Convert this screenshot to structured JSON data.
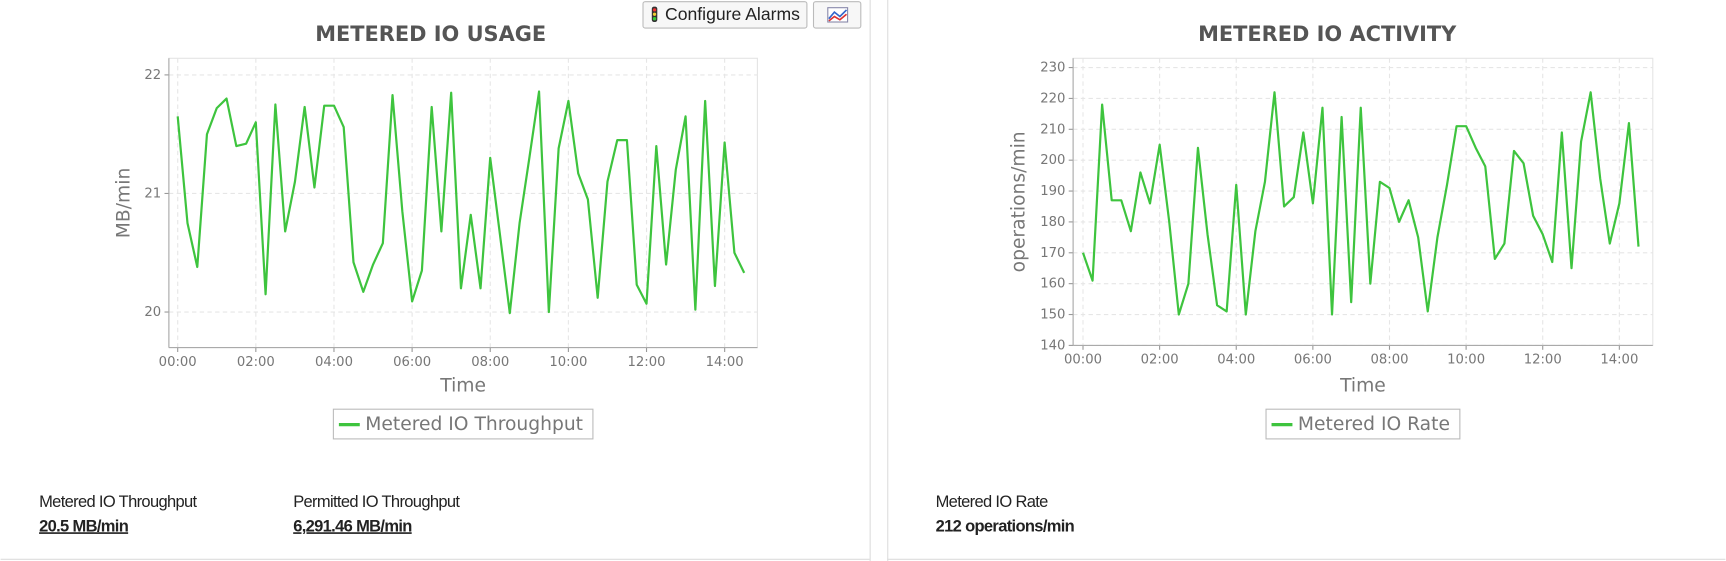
{
  "buttons": {
    "configure_alarms": "Configure Alarms"
  },
  "chart_data": [
    {
      "type": "line",
      "title": "METERED IO USAGE",
      "xlabel": "Time",
      "ylabel": "MB/min",
      "x": [
        "00:00",
        "00:15",
        "00:30",
        "00:45",
        "01:00",
        "01:15",
        "01:30",
        "01:45",
        "02:00",
        "02:15",
        "02:30",
        "02:45",
        "03:00",
        "03:15",
        "03:30",
        "03:45",
        "04:00",
        "04:15",
        "04:30",
        "04:45",
        "05:00",
        "05:15",
        "05:30",
        "05:45",
        "06:00",
        "06:15",
        "06:30",
        "06:45",
        "07:00",
        "07:15",
        "07:30",
        "07:45",
        "08:00",
        "08:15",
        "08:30",
        "08:45",
        "09:00",
        "09:15",
        "09:30",
        "09:45",
        "10:00",
        "10:15",
        "10:30",
        "10:45",
        "11:00",
        "11:15",
        "11:30",
        "11:45",
        "12:00",
        "12:15",
        "12:30",
        "12:45",
        "13:00",
        "13:15",
        "13:30",
        "13:45",
        "14:00",
        "14:15",
        "14:30"
      ],
      "xlim": [
        "00:00",
        "14:30"
      ],
      "xticks": [
        "00:00",
        "02:00",
        "04:00",
        "06:00",
        "08:00",
        "10:00",
        "12:00",
        "14:00"
      ],
      "ylim": [
        19.7,
        22.14
      ],
      "yticks": [
        20,
        21,
        22
      ],
      "grid": true,
      "legend": "bottom",
      "series": [
        {
          "name": "Metered IO Throughput",
          "color": "#3ec43e",
          "values": [
            21.65,
            20.75,
            20.38,
            21.5,
            21.72,
            21.8,
            21.4,
            21.42,
            21.6,
            20.15,
            21.75,
            20.68,
            21.1,
            21.73,
            21.05,
            21.74,
            21.74,
            21.56,
            20.42,
            20.17,
            20.4,
            20.58,
            21.83,
            20.85,
            20.09,
            20.35,
            21.73,
            20.68,
            21.85,
            20.2,
            20.82,
            20.2,
            21.3,
            20.65,
            19.99,
            20.75,
            21.3,
            21.86,
            20.0,
            21.38,
            21.78,
            21.17,
            20.95,
            20.12,
            21.1,
            21.45,
            21.45,
            20.23,
            20.07,
            21.4,
            20.4,
            21.2,
            21.65,
            20.02,
            21.78,
            20.22,
            21.43,
            20.5,
            20.33
          ]
        }
      ]
    },
    {
      "type": "line",
      "title": "METERED IO ACTIVITY",
      "xlabel": "Time",
      "ylabel": "operations/min",
      "x": [
        "00:00",
        "00:15",
        "00:30",
        "00:45",
        "01:00",
        "01:15",
        "01:30",
        "01:45",
        "02:00",
        "02:15",
        "02:30",
        "02:45",
        "03:00",
        "03:15",
        "03:30",
        "03:45",
        "04:00",
        "04:15",
        "04:30",
        "04:45",
        "05:00",
        "05:15",
        "05:30",
        "05:45",
        "06:00",
        "06:15",
        "06:30",
        "06:45",
        "07:00",
        "07:15",
        "07:30",
        "07:45",
        "08:00",
        "08:15",
        "08:30",
        "08:45",
        "09:00",
        "09:15",
        "09:30",
        "09:45",
        "10:00",
        "10:15",
        "10:30",
        "10:45",
        "11:00",
        "11:15",
        "11:30",
        "11:45",
        "12:00",
        "12:15",
        "12:30",
        "12:45",
        "13:00",
        "13:15",
        "13:30",
        "13:45",
        "14:00",
        "14:15",
        "14:30"
      ],
      "xlim": [
        "00:00",
        "14:30"
      ],
      "xticks": [
        "00:00",
        "02:00",
        "04:00",
        "06:00",
        "08:00",
        "10:00",
        "12:00",
        "14:00"
      ],
      "ylim": [
        140,
        233
      ],
      "yticks": [
        140,
        150,
        160,
        170,
        180,
        190,
        200,
        210,
        220,
        230
      ],
      "grid": true,
      "legend": "bottom",
      "series": [
        {
          "name": "Metered IO Rate",
          "color": "#3ec43e",
          "values": [
            170,
            161,
            218,
            187,
            187,
            177,
            196,
            186,
            205,
            180,
            150,
            160,
            204,
            176,
            153,
            151,
            192,
            150,
            177,
            193,
            222,
            185,
            188,
            209,
            186,
            217,
            150,
            214,
            154,
            217,
            160,
            193,
            191,
            180,
            187,
            175,
            151,
            175,
            192,
            211,
            211,
            204,
            198,
            168,
            173,
            203,
            199,
            182,
            176,
            167,
            209,
            165,
            206,
            222,
            194,
            173,
            186,
            212,
            172
          ]
        }
      ]
    }
  ],
  "stats": {
    "throughput_label": "Metered IO Throughput",
    "throughput_value": "20.5 MB/min",
    "permitted_label": "Permitted IO Throughput",
    "permitted_value": "6,291.46 MB/min",
    "rate_label": "Metered IO Rate",
    "rate_value": "212 operations/min"
  }
}
